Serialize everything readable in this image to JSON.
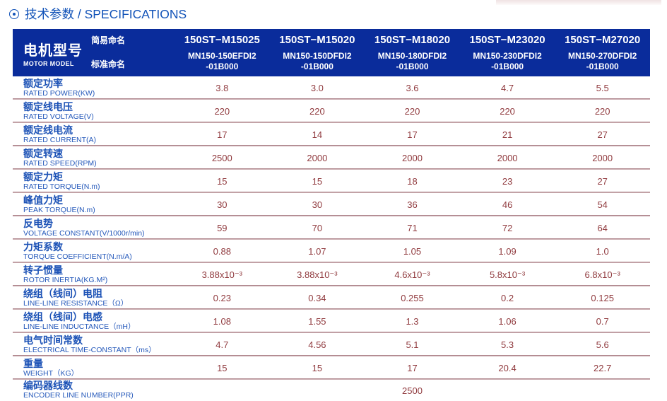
{
  "page": {
    "title": "技术参数 / SPECIFICATIONS"
  },
  "table": {
    "motor_model": {
      "cn": "电机型号",
      "en": "MOTOR MODEL"
    },
    "naming": {
      "simple": "简易命名",
      "standard": "标准命名"
    },
    "columns": [
      {
        "simple": "150ST−M15025",
        "standard": "MN150-150EFDI2\n-01B000"
      },
      {
        "simple": "150ST−M15020",
        "standard": "MN150-150DFDI2\n-01B000"
      },
      {
        "simple": "150ST−M18020",
        "standard": "MN150-180DFDI2\n-01B000"
      },
      {
        "simple": "150ST−M23020",
        "standard": "MN150-230DFDI2\n-01B000"
      },
      {
        "simple": "150ST−M27020",
        "standard": "MN150-270DFDI2\n-01B000"
      }
    ],
    "rows": [
      {
        "cn": "额定功率",
        "en": "RATED POWER(KW)",
        "values": [
          "3.8",
          "3.0",
          "3.6",
          "4.7",
          "5.5"
        ]
      },
      {
        "cn": "额定线电压",
        "en": "RATED VOLTAGE(V)",
        "values": [
          "220",
          "220",
          "220",
          "220",
          "220"
        ]
      },
      {
        "cn": "额定线电流",
        "en": "RATED CURRENT(A)",
        "values": [
          "17",
          "14",
          "17",
          "21",
          "27"
        ]
      },
      {
        "cn": "额定转速",
        "en": "RATED SPEED(RPM)",
        "values": [
          "2500",
          "2000",
          "2000",
          "2000",
          "2000"
        ]
      },
      {
        "cn": "额定力矩",
        "en": "RATED TORQUE(N.m)",
        "values": [
          "15",
          "15",
          "18",
          "23",
          "27"
        ]
      },
      {
        "cn": "峰值力矩",
        "en": "PEAK TORQUE(N.m)",
        "values": [
          "30",
          "30",
          "36",
          "46",
          "54"
        ]
      },
      {
        "cn": "反电势",
        "en": "VOLTAGE CONSTANT(V/1000r/min)",
        "values": [
          "59",
          "70",
          "71",
          "72",
          "64"
        ]
      },
      {
        "cn": "力矩系数",
        "en": "TORQUE COEFFICIENT(N.m/A)",
        "values": [
          "0.88",
          "1.07",
          "1.05",
          "1.09",
          "1.0"
        ]
      },
      {
        "cn": "转子惯量",
        "en": "ROTOR INERTIA(KG.M²)",
        "values": [
          "3.88x10⁻³",
          "3.88x10⁻³",
          "4.6x10⁻³",
          "5.8x10⁻³",
          "6.8x10⁻³"
        ]
      },
      {
        "cn": "绕组（线间）电阻",
        "en": "LINE-LINE RESISTANCE（Ω）",
        "values": [
          "0.23",
          "0.34",
          "0.255",
          "0.2",
          "0.125"
        ]
      },
      {
        "cn": "绕组（线间）电感",
        "en": "LINE-LINE INDUCTANCE（mH）",
        "values": [
          "1.08",
          "1.55",
          "1.3",
          "1.06",
          "0.7"
        ]
      },
      {
        "cn": "电气时间常数",
        "en": "ELECTRICAL TIME-CONSTANT（ms）",
        "values": [
          "4.7",
          "4.56",
          "5.1",
          "5.3",
          "5.6"
        ]
      },
      {
        "cn": "重量",
        "en": "WEIGHT（KG）",
        "values": [
          "15",
          "15",
          "17",
          "20.4",
          "22.7"
        ]
      },
      {
        "cn": "编码器线数",
        "en": "ENCODER LINE NUMBER(PPR)",
        "span_value": "2500"
      }
    ]
  }
}
